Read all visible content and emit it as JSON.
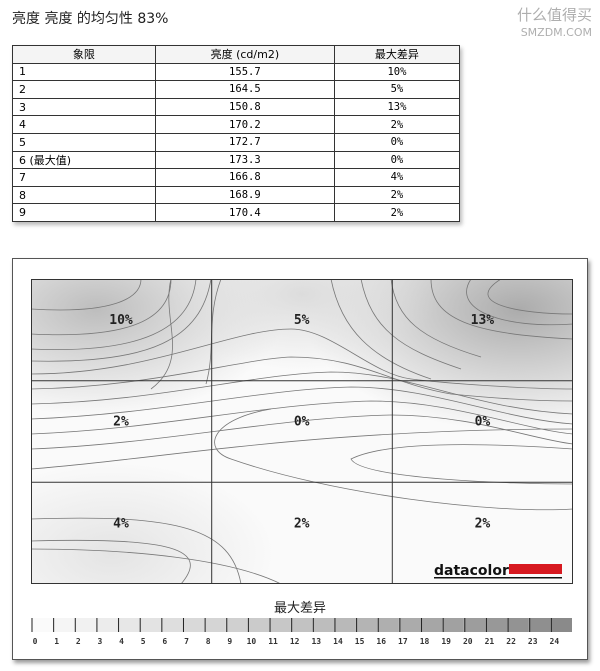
{
  "title": "亮度 亮度 的均匀性 83%",
  "table": {
    "headers": [
      "象限",
      "亮度 (cd/m2)",
      "最大差异"
    ],
    "rows": [
      [
        "1",
        "155.7",
        "10%"
      ],
      [
        "2",
        "164.5",
        "5%"
      ],
      [
        "3",
        "150.8",
        "13%"
      ],
      [
        "4",
        "170.2",
        "2%"
      ],
      [
        "5",
        "172.7",
        "0%"
      ],
      [
        "6 (最大值)",
        "173.3",
        "0%"
      ],
      [
        "7",
        "166.8",
        "4%"
      ],
      [
        "8",
        "168.9",
        "2%"
      ],
      [
        "9",
        "170.4",
        "2%"
      ]
    ]
  },
  "chart_data": {
    "type": "heatmap",
    "grid": [
      [
        "10%",
        "5%",
        "13%"
      ],
      [
        "2%",
        "0%",
        "0%"
      ],
      [
        "4%",
        "2%",
        "2%"
      ]
    ],
    "values": [
      [
        10,
        5,
        13
      ],
      [
        2,
        0,
        0
      ],
      [
        4,
        2,
        2
      ]
    ],
    "colorbar_title": "最大差异",
    "colorbar_ticks": [
      "0",
      "1",
      "2",
      "3",
      "4",
      "5",
      "6",
      "7",
      "8",
      "9",
      "10",
      "11",
      "12",
      "13",
      "14",
      "15",
      "16",
      "17",
      "18",
      "19",
      "20",
      "21",
      "22",
      "23",
      "24"
    ],
    "colorbar_range": [
      0,
      25
    ],
    "colors": {
      "low": "#ffffff",
      "high": "#8a8a8a"
    }
  },
  "logo": "datacolor",
  "logo_color": "#d71920",
  "watermark": {
    "line1": "什么值得买",
    "line2": "SMZDM.COM"
  }
}
